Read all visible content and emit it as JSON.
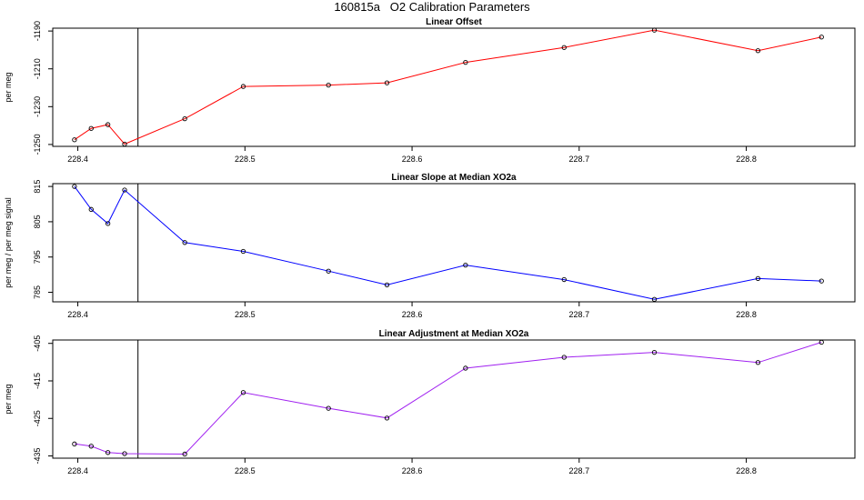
{
  "title": "160815a   O2 Calibration Parameters",
  "chart_data": [
    {
      "type": "line",
      "title": "Linear Offset",
      "xlabel": "",
      "ylabel": "per meg",
      "color": "#ff0000",
      "xlim": [
        228.385,
        228.865
      ],
      "ylim": [
        -1251,
        -1188.5
      ],
      "xticks": [
        228.4,
        228.5,
        228.6,
        228.7,
        228.8
      ],
      "xtick_labels": [
        "228.4",
        "228.5",
        "228.6",
        "228.7",
        "228.8"
      ],
      "yticks": [
        -1250,
        -1230,
        -1210,
        -1190
      ],
      "ytick_labels": [
        "-1250",
        "-1230",
        "-1210",
        "-1190"
      ],
      "vline_x": 228.436,
      "x": [
        228.398,
        228.408,
        228.418,
        228.428,
        228.464,
        228.499,
        228.55,
        228.585,
        228.632,
        228.691,
        228.745,
        228.807,
        228.845
      ],
      "y": [
        -1247.5,
        -1241.5,
        -1239.5,
        -1249.8,
        -1236.4,
        -1219.3,
        -1218.6,
        -1217.4,
        -1206.6,
        -1198.7,
        -1189.5,
        -1200.4,
        -1193.2
      ]
    },
    {
      "type": "line",
      "title": "Linear Slope at Median XO2a",
      "xlabel": "",
      "ylabel": "per meg / per meg signal",
      "color": "#0000ff",
      "xlim": [
        228.385,
        228.865
      ],
      "ylim": [
        782.3,
        815.8
      ],
      "xticks": [
        228.4,
        228.5,
        228.6,
        228.7,
        228.8
      ],
      "xtick_labels": [
        "228.4",
        "228.5",
        "228.6",
        "228.7",
        "228.8"
      ],
      "yticks": [
        785,
        795,
        805,
        815
      ],
      "ytick_labels": [
        "785",
        "795",
        "805",
        "815"
      ],
      "vline_x": 228.436,
      "x": [
        228.398,
        228.408,
        228.418,
        228.428,
        228.464,
        228.499,
        228.55,
        228.585,
        228.632,
        228.691,
        228.745,
        228.807,
        228.845
      ],
      "y": [
        815.0,
        808.5,
        804.5,
        814.0,
        799.1,
        796.6,
        791.0,
        787.1,
        792.7,
        788.6,
        783.0,
        788.9,
        788.2
      ]
    },
    {
      "type": "line",
      "title": "Linear Adjustment at Median XO2a",
      "xlabel": "",
      "ylabel": "per meg",
      "color": "#a020f0",
      "xlim": [
        228.385,
        228.865
      ],
      "ylim": [
        -435.6,
        -404.1
      ],
      "xticks": [
        228.4,
        228.5,
        228.6,
        228.7,
        228.8
      ],
      "xtick_labels": [
        "228.4",
        "228.5",
        "228.6",
        "228.7",
        "228.8"
      ],
      "yticks": [
        -435,
        -425,
        -415,
        -405
      ],
      "ytick_labels": [
        "-435",
        "-425",
        "-415",
        "-405"
      ],
      "vline_x": 228.436,
      "x": [
        228.398,
        228.408,
        228.418,
        228.428,
        228.464,
        228.499,
        228.55,
        228.585,
        228.632,
        228.691,
        228.745,
        228.807,
        228.845
      ],
      "y": [
        -431.8,
        -432.4,
        -434.1,
        -434.4,
        -434.5,
        -418.1,
        -422.3,
        -424.9,
        -411.6,
        -408.7,
        -407.4,
        -410.1,
        -404.7
      ]
    }
  ]
}
